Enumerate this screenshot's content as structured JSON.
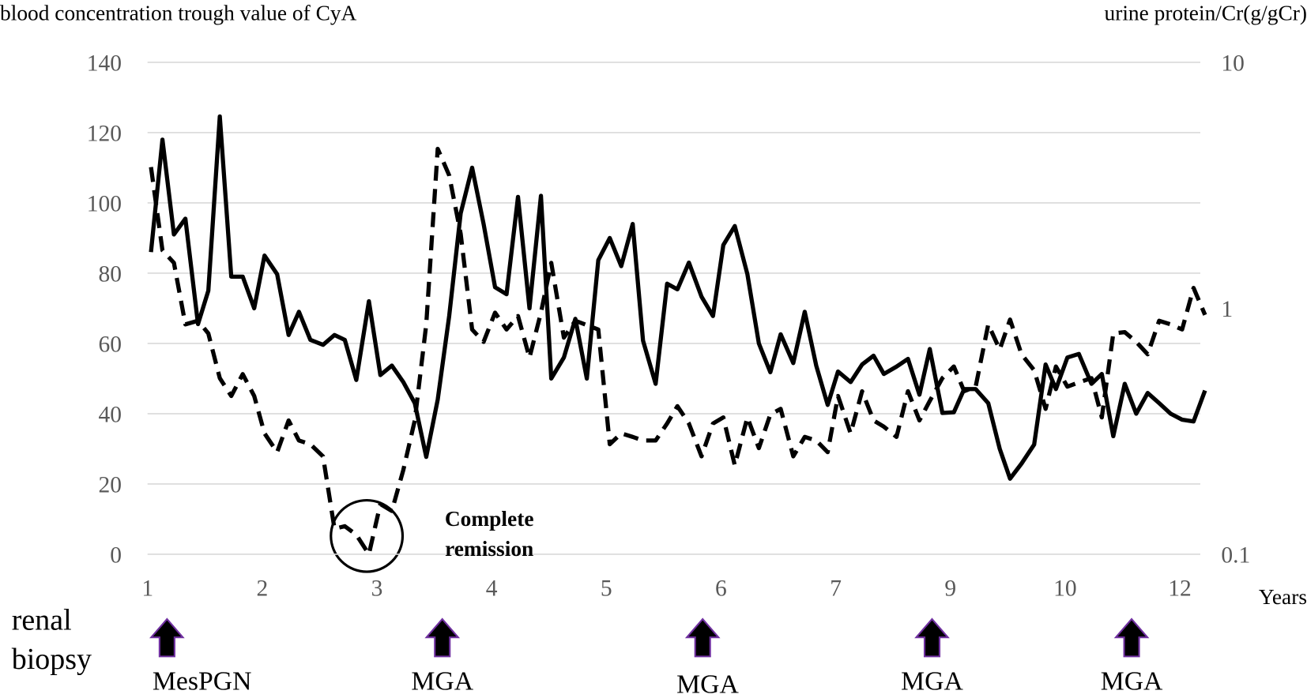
{
  "chart_data": {
    "type": "line",
    "y_label": "blood concentration trough value of CyA",
    "y2_label": "urine protein/Cr(g/gCr)",
    "x_label": "Years",
    "categories": [
      "1",
      "2",
      "3",
      "4",
      "5",
      "6",
      "7",
      "9",
      "10",
      "12"
    ],
    "ylim": [
      0,
      140
    ],
    "yticks": [
      0,
      20,
      40,
      60,
      80,
      100,
      120,
      140
    ],
    "y2lim": [
      0.1,
      10
    ],
    "y2ticks": [
      0.1,
      1,
      10
    ],
    "y2_log": true,
    "grid": true,
    "series": [
      {
        "name": "blood concentration trough value of CyA",
        "color": "#000000",
        "dash": false,
        "axis": "y",
        "x": [
          0.03,
          0.13,
          0.23,
          0.33,
          0.44,
          0.53,
          0.63,
          0.73,
          0.83,
          0.93,
          1.02,
          1.13,
          1.23,
          1.32,
          1.42,
          1.53,
          1.63,
          1.72,
          1.82,
          1.93,
          2.03,
          2.13,
          2.23,
          2.33,
          2.43,
          2.53,
          2.63,
          2.73,
          2.83,
          2.93,
          3.03,
          3.13,
          3.23,
          3.33,
          3.43,
          3.52,
          3.63,
          3.73,
          3.83,
          3.93,
          4.03,
          4.13,
          4.23,
          4.32,
          4.43,
          4.53,
          4.62,
          4.72,
          4.83,
          4.93,
          5.02,
          5.12,
          5.23,
          5.33,
          5.43,
          5.52,
          5.63,
          5.73,
          5.83,
          5.93,
          6.02,
          6.13,
          6.23,
          6.33,
          6.42,
          6.53,
          6.63,
          6.73,
          6.82,
          6.93,
          7.03,
          7.12,
          7.22,
          7.33,
          7.43,
          7.52,
          7.62,
          7.73,
          7.83,
          7.92,
          8.02,
          8.12,
          8.23,
          8.32,
          8.42,
          8.52,
          8.62,
          8.72,
          8.82,
          8.92,
          9.02,
          9.12,
          9.22
        ],
        "values": [
          86,
          118,
          91,
          95.5,
          65.5,
          75,
          124.6,
          79,
          79,
          70,
          85,
          79.7,
          62.4,
          69,
          61,
          59.6,
          62.4,
          61,
          49.6,
          72,
          51,
          53.7,
          49,
          43,
          27.7,
          44,
          67.8,
          97,
          110,
          94,
          76,
          74,
          101.7,
          70,
          102,
          50,
          56,
          67,
          50,
          83.7,
          90,
          82,
          94,
          60.8,
          48.5,
          77,
          75.4,
          83,
          73.3,
          67.8,
          88,
          93.4,
          79.7,
          60,
          51.8,
          62.6,
          54.4,
          69,
          53.7,
          42.5,
          52,
          49,
          54,
          56.5,
          51.3,
          53.4,
          55.6,
          45.4,
          58.4,
          40.2,
          40.4,
          47,
          47,
          43,
          30,
          21.5,
          25.8,
          31.2,
          54,
          47,
          56,
          57,
          48.5,
          51.3,
          33.6,
          48.5,
          40,
          45.9,
          43,
          40,
          38.3,
          37.8,
          46.6
        ]
      },
      {
        "name": "urine protein/Cr(g/gCr)",
        "color": "#000000",
        "dash": true,
        "axis": "y2",
        "x": [
          0.03,
          0.13,
          0.23,
          0.33,
          0.44,
          0.53,
          0.63,
          0.73,
          0.83,
          0.93,
          1.02,
          1.13,
          1.23,
          1.32,
          1.42,
          1.53,
          1.63,
          1.72,
          1.82,
          1.93,
          2.03,
          2.13,
          2.23,
          2.33,
          2.43,
          2.53,
          2.63,
          2.73,
          2.83,
          2.93,
          3.03,
          3.13,
          3.23,
          3.33,
          3.43,
          3.52,
          3.63,
          3.73,
          3.93,
          4.03,
          4.13,
          4.23,
          4.32,
          4.43,
          4.53,
          4.62,
          4.72,
          4.83,
          4.93,
          5.02,
          5.12,
          5.23,
          5.33,
          5.43,
          5.52,
          5.63,
          5.73,
          5.83,
          5.93,
          6.02,
          6.13,
          6.23,
          6.33,
          6.42,
          6.53,
          6.63,
          6.73,
          6.82,
          6.93,
          7.03,
          7.12,
          7.22,
          7.33,
          7.43,
          7.52,
          7.62,
          7.73,
          7.83,
          7.92,
          8.02,
          8.12,
          8.23,
          8.32,
          8.42,
          8.52,
          8.62,
          8.72,
          8.82,
          8.92,
          9.02,
          9.12,
          9.22
        ],
        "values": [
          3.75,
          1.72,
          1.53,
          0.86,
          0.89,
          0.79,
          0.52,
          0.44,
          0.54,
          0.44,
          0.31,
          0.26,
          0.35,
          0.29,
          0.28,
          0.25,
          0.127,
          0.13,
          0.12,
          0.1,
          0.16,
          0.15,
          0.22,
          0.35,
          0.86,
          4.45,
          3.47,
          2.01,
          0.82,
          0.73,
          0.96,
          0.82,
          0.93,
          0.63,
          0.96,
          1.53,
          0.76,
          0.89,
          0.82,
          0.28,
          0.31,
          0.3,
          0.29,
          0.29,
          0.34,
          0.4,
          0.34,
          0.25,
          0.34,
          0.36,
          0.23,
          0.36,
          0.27,
          0.37,
          0.39,
          0.25,
          0.3,
          0.29,
          0.26,
          0.44,
          0.31,
          0.46,
          0.35,
          0.33,
          0.3,
          0.46,
          0.35,
          0.42,
          0.52,
          0.58,
          0.46,
          0.48,
          0.86,
          0.68,
          0.9,
          0.65,
          0.56,
          0.39,
          0.58,
          0.48,
          0.5,
          0.52,
          0.36,
          0.79,
          0.8,
          0.73,
          0.65,
          0.89,
          0.86,
          0.82,
          1.21,
          0.94
        ]
      }
    ],
    "annotation": [
      "Complete",
      "remission"
    ],
    "biopsy_label": [
      "renal",
      "biopsy"
    ],
    "biopsies": [
      {
        "x": 0.17,
        "label": "MesPGN"
      },
      {
        "x": 2.57,
        "label": "MGA"
      },
      {
        "x": 4.84,
        "label": "MGA"
      },
      {
        "x": 6.84,
        "label": "MGA"
      },
      {
        "x": 8.58,
        "label": "MGA"
      }
    ]
  }
}
